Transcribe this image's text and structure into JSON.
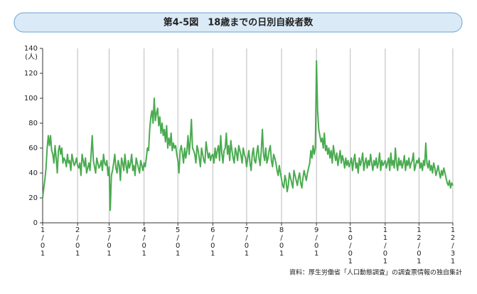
{
  "chart_data": {
    "type": "line",
    "title": "第4-5図　18歳までの日別自殺者数",
    "ylabel": "(人)",
    "source": "資料：厚生労働省「人口動態調査」の調査票情報の独自集計",
    "ylim": [
      0,
      140
    ],
    "yticks": [
      0,
      20,
      40,
      60,
      80,
      100,
      120,
      140
    ],
    "grid": true,
    "categories": [
      "1/01",
      null,
      null,
      null,
      null,
      null,
      null,
      null,
      null,
      null,
      null,
      null,
      null,
      null,
      null,
      null,
      null,
      null,
      null,
      null,
      null,
      null,
      null,
      null,
      null,
      null,
      null,
      null,
      null,
      null,
      null,
      "2/01",
      null,
      null,
      null,
      null,
      null,
      null,
      null,
      null,
      null,
      null,
      null,
      null,
      null,
      null,
      null,
      null,
      null,
      null,
      null,
      null,
      null,
      null,
      null,
      null,
      null,
      null,
      null,
      "3/01",
      null,
      null,
      null,
      null,
      null,
      null,
      null,
      null,
      null,
      null,
      null,
      null,
      null,
      null,
      null,
      null,
      null,
      null,
      null,
      null,
      null,
      null,
      null,
      null,
      null,
      null,
      null,
      null,
      null,
      null,
      "4/01",
      null,
      null,
      null,
      null,
      null,
      null,
      null,
      null,
      null,
      null,
      null,
      null,
      null,
      null,
      null,
      null,
      null,
      null,
      null,
      null,
      null,
      null,
      null,
      null,
      null,
      null,
      null,
      null,
      null,
      "5/01",
      null,
      null,
      null,
      null,
      null,
      null,
      null,
      null,
      null,
      null,
      null,
      null,
      null,
      null,
      null,
      null,
      null,
      null,
      null,
      null,
      null,
      null,
      null,
      null,
      null,
      null,
      null,
      null,
      null,
      null,
      "6/01",
      null,
      null,
      null,
      null,
      null,
      null,
      null,
      null,
      null,
      null,
      null,
      null,
      null,
      null,
      null,
      null,
      null,
      null,
      null,
      null,
      null,
      null,
      null,
      null,
      null,
      null,
      null,
      null,
      null,
      "7/01",
      null,
      null,
      null,
      null,
      null,
      null,
      null,
      null,
      null,
      null,
      null,
      null,
      null,
      null,
      null,
      null,
      null,
      null,
      null,
      null,
      null,
      null,
      null,
      null,
      null,
      null,
      null,
      null,
      null,
      null,
      "8/01",
      null,
      null,
      null,
      null,
      null,
      null,
      null,
      null,
      null,
      null,
      null,
      null,
      null,
      null,
      null,
      null,
      null,
      null,
      null,
      null,
      null,
      null,
      null,
      null,
      null,
      null,
      null,
      null,
      null,
      null,
      "9/01",
      null,
      null,
      null,
      null,
      null,
      null,
      null,
      null,
      null,
      null,
      null,
      null,
      null,
      null,
      null,
      null,
      null,
      null,
      null,
      null,
      null,
      null,
      null,
      null,
      null,
      null,
      null,
      null,
      null,
      "10/01",
      null,
      null,
      null,
      null,
      null,
      null,
      null,
      null,
      null,
      null,
      null,
      null,
      null,
      null,
      null,
      null,
      null,
      null,
      null,
      null,
      null,
      null,
      null,
      null,
      null,
      null,
      null,
      null,
      null,
      null,
      "11/01",
      null,
      null,
      null,
      null,
      null,
      null,
      null,
      null,
      null,
      null,
      null,
      null,
      null,
      null,
      null,
      null,
      null,
      null,
      null,
      null,
      null,
      null,
      null,
      null,
      null,
      null,
      null,
      null,
      null,
      "12/01",
      null,
      null,
      null,
      null,
      null,
      null,
      null,
      null,
      null,
      null,
      null,
      null,
      null,
      null,
      null,
      null,
      null,
      null,
      null,
      null,
      null,
      null,
      null,
      null,
      null,
      null,
      null,
      null,
      null,
      "12/31"
    ],
    "color": "#4aab50",
    "values": [
      20,
      28,
      35,
      44,
      60,
      70,
      62,
      70,
      58,
      55,
      48,
      62,
      52,
      40,
      58,
      62,
      55,
      60,
      48,
      52,
      50,
      45,
      55,
      48,
      50,
      42,
      55,
      50,
      46,
      48,
      52,
      46,
      44,
      48,
      38,
      55,
      50,
      45,
      52,
      40,
      44,
      48,
      42,
      55,
      70,
      50,
      45,
      40,
      52,
      48,
      44,
      46,
      50,
      42,
      55,
      48,
      46,
      50,
      38,
      45,
      10,
      38,
      42,
      48,
      55,
      44,
      40,
      50,
      46,
      34,
      52,
      48,
      42,
      55,
      46,
      40,
      50,
      44,
      48,
      55,
      42,
      46,
      38,
      52,
      48,
      44,
      40,
      50,
      46,
      42,
      48,
      45,
      52,
      60,
      58,
      75,
      85,
      90,
      80,
      100,
      82,
      88,
      92,
      78,
      85,
      72,
      80,
      70,
      75,
      65,
      78,
      60,
      68,
      62,
      72,
      58,
      64,
      60,
      62,
      55,
      50,
      40,
      58,
      62,
      56,
      48,
      60,
      52,
      58,
      70,
      55,
      66,
      83,
      60,
      58,
      55,
      48,
      62,
      58,
      52,
      45,
      60,
      55,
      50,
      48,
      65,
      58,
      52,
      56,
      50,
      54,
      55,
      48,
      60,
      52,
      58,
      62,
      50,
      70,
      56,
      48,
      58,
      60,
      72,
      55,
      62,
      50,
      66,
      58,
      52,
      48,
      60,
      56,
      50,
      62,
      58,
      54,
      48,
      60,
      55,
      52,
      45,
      52,
      58,
      48,
      42,
      55,
      60,
      50,
      48,
      56,
      62,
      52,
      46,
      58,
      75,
      55,
      50,
      60,
      48,
      52,
      58,
      62,
      50,
      45,
      55,
      52,
      48,
      42,
      38,
      46,
      40,
      35,
      30,
      28,
      38,
      34,
      25,
      30,
      40,
      36,
      32,
      28,
      42,
      38,
      34,
      30,
      36,
      40,
      32,
      28,
      36,
      42,
      38,
      34,
      40,
      44,
      48,
      58,
      52,
      62,
      55,
      60,
      130,
      90,
      75,
      70,
      65,
      68,
      60,
      72,
      58,
      62,
      55,
      60,
      52,
      58,
      48,
      62,
      55,
      50,
      56,
      46,
      52,
      58,
      48,
      54,
      50,
      44,
      52,
      46,
      50,
      45,
      48,
      52,
      42,
      50,
      55,
      44,
      48,
      40,
      52,
      46,
      50,
      56,
      42,
      48,
      52,
      44,
      50,
      46,
      55,
      48,
      42,
      50,
      46,
      52,
      44,
      48,
      56,
      42,
      50,
      46,
      48,
      50,
      44,
      48,
      52,
      42,
      56,
      46,
      50,
      44,
      60,
      48,
      42,
      52,
      46,
      50,
      44,
      48,
      54,
      42,
      50,
      46,
      52,
      44,
      48,
      50,
      56,
      42,
      46,
      50,
      48,
      52,
      44,
      48,
      42,
      50,
      46,
      64,
      48,
      44,
      50,
      42,
      46,
      40,
      48,
      44,
      38,
      42,
      46,
      40,
      36,
      42,
      38,
      44,
      40,
      36,
      32,
      30,
      34,
      28,
      32,
      30
    ]
  }
}
